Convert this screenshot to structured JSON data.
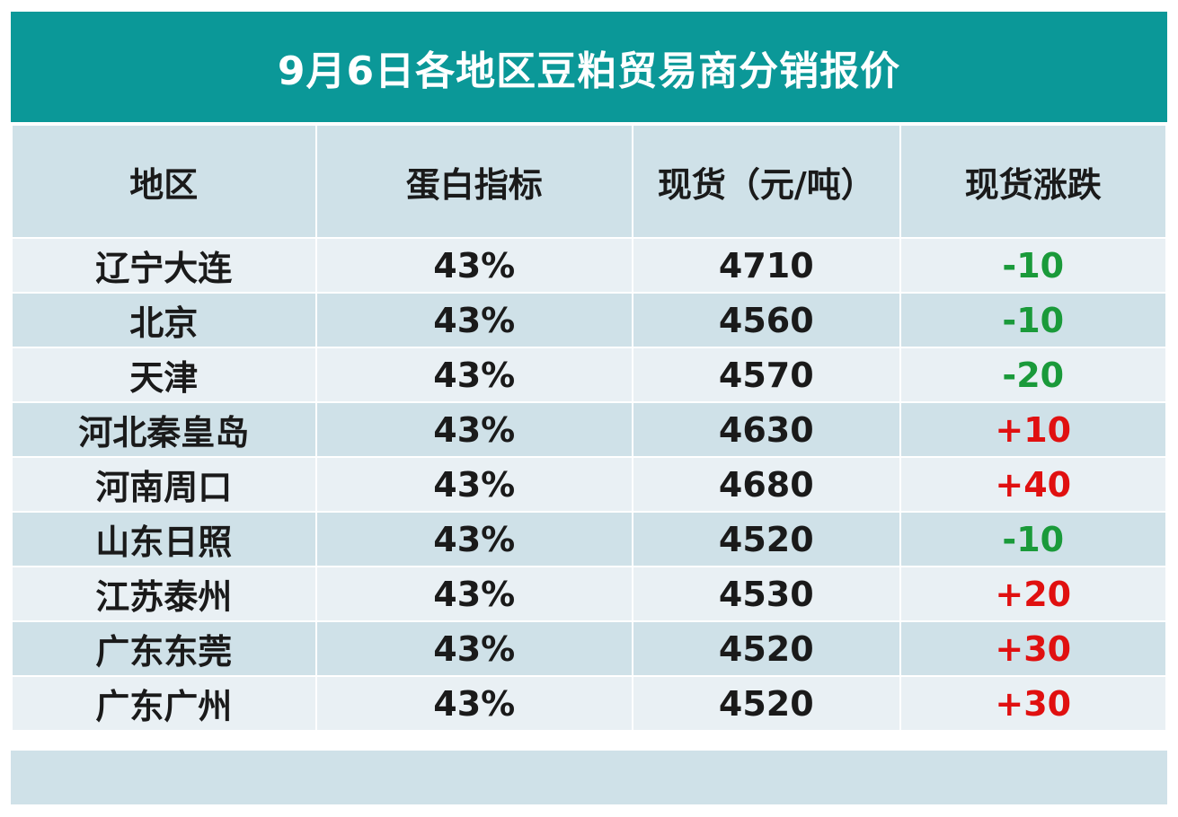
{
  "title": "9月6日各地区豆粕贸易商分销报价",
  "headers": [
    "地区",
    "蛋白指标",
    "现货（元/吨）",
    "现货涨跌"
  ],
  "rows": [
    {
      "region": "辽宁大连",
      "protein": "43%",
      "price": "4710",
      "change": "-10",
      "dir": "down"
    },
    {
      "region": "北京",
      "protein": "43%",
      "price": "4560",
      "change": "-10",
      "dir": "down"
    },
    {
      "region": "天津",
      "protein": "43%",
      "price": "4570",
      "change": "-20",
      "dir": "down"
    },
    {
      "region": "河北秦皇岛",
      "protein": "43%",
      "price": "4630",
      "change": "+10",
      "dir": "up"
    },
    {
      "region": "河南周口",
      "protein": "43%",
      "price": "4680",
      "change": "+40",
      "dir": "up"
    },
    {
      "region": "山东日照",
      "protein": "43%",
      "price": "4520",
      "change": "-10",
      "dir": "down"
    },
    {
      "region": "江苏泰州",
      "protein": "43%",
      "price": "4530",
      "change": "+20",
      "dir": "up"
    },
    {
      "region": "广东东莞",
      "protein": "43%",
      "price": "4520",
      "change": "+30",
      "dir": "up"
    },
    {
      "region": "广东广州",
      "protein": "43%",
      "price": "4520",
      "change": "+30",
      "dir": "up"
    }
  ],
  "colors": {
    "banner": "#0b9898",
    "up": "#e01010",
    "down": "#1a9a3a"
  }
}
